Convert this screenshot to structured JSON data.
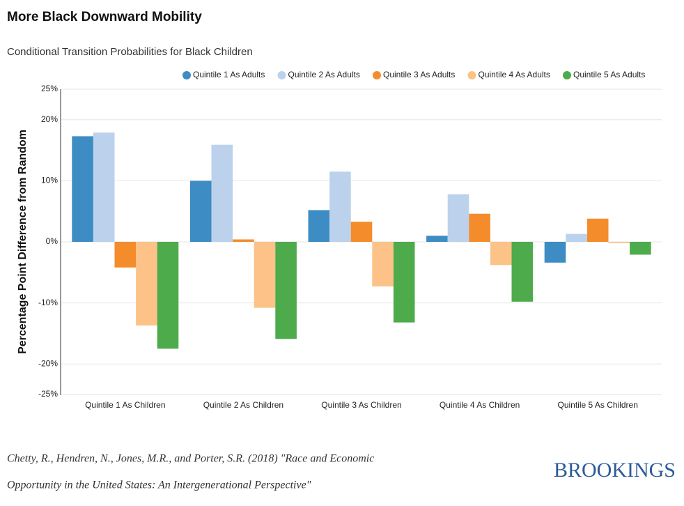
{
  "chart_data": {
    "type": "bar",
    "title": "More Black Downward Mobility",
    "subtitle": "Conditional Transition Probabilities for Black Children",
    "y_label": "Percentage Point Difference from Random",
    "categories": [
      "Quintile 1 As Children",
      "Quintile 2 As Children",
      "Quintile 3 As Children",
      "Quintile 4 As Children",
      "Quintile 5 As Children"
    ],
    "series": [
      {
        "name": "Quintile 1 As Adults",
        "color": "#3d8cc4",
        "values": [
          17.3,
          10.0,
          5.2,
          1.0,
          -3.4
        ]
      },
      {
        "name": "Quintile 2 As Adults",
        "color": "#bcd2ec",
        "values": [
          17.9,
          15.9,
          11.5,
          7.8,
          1.3
        ]
      },
      {
        "name": "Quintile 3 As Adults",
        "color": "#f58c2c",
        "values": [
          -4.2,
          0.4,
          3.3,
          4.6,
          3.8
        ]
      },
      {
        "name": "Quintile 4 As Adults",
        "color": "#fcc287",
        "values": [
          -13.7,
          -10.8,
          -7.3,
          -3.8,
          -0.2
        ]
      },
      {
        "name": "Quintile 5 As Adults",
        "color": "#4dab4b",
        "values": [
          -17.5,
          -15.9,
          -13.2,
          -9.8,
          -2.1
        ]
      }
    ],
    "ylim": [
      -25,
      25
    ],
    "yticks": [
      {
        "value": -25,
        "label": "-25%"
      },
      {
        "value": -20,
        "label": "-20%"
      },
      {
        "value": -10,
        "label": "-10%"
      },
      {
        "value": 0,
        "label": "0%"
      },
      {
        "value": 10,
        "label": "10%"
      },
      {
        "value": 20,
        "label": "20%"
      },
      {
        "value": 25,
        "label": "25%"
      }
    ],
    "grid": true,
    "source": [
      "Chetty, R., Hendren, N., Jones, M.R., and Porter, S.R. (2018) \"Race and Economic",
      "Opportunity in the United States: An Intergenerational Perspective\""
    ],
    "logo": "BROOKINGS"
  }
}
